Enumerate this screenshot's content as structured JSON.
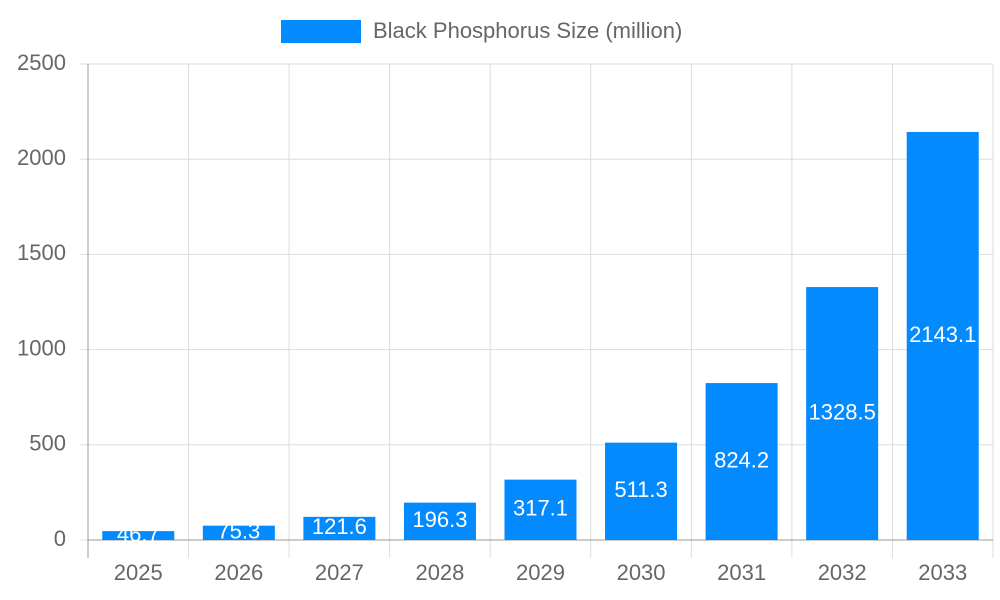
{
  "chart_data": {
    "type": "bar",
    "legend": "Black Phosphorus Size (million)",
    "categories": [
      "2025",
      "2026",
      "2027",
      "2028",
      "2029",
      "2030",
      "2031",
      "2032",
      "2033"
    ],
    "values": [
      46.7,
      75.3,
      121.6,
      196.3,
      317.1,
      511.3,
      824.2,
      1328.5,
      2143.1
    ],
    "color": "#038aff",
    "ylim": [
      0,
      2500
    ],
    "yticks": [
      0,
      500,
      1000,
      1500,
      2000,
      2500
    ],
    "grid": true,
    "legend_position": "top"
  }
}
